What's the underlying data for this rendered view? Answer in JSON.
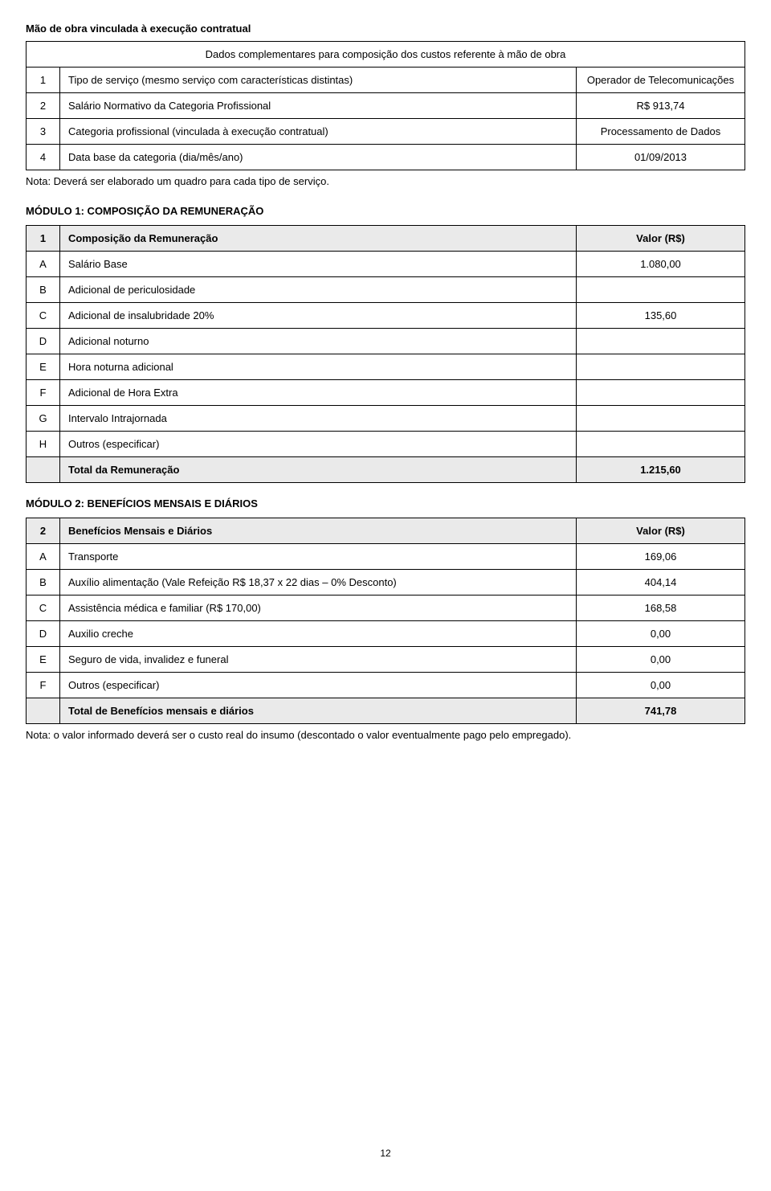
{
  "header": {
    "main_title": "Mão de obra vinculada à execução contratual",
    "sub_title": "Dados complementares para composição dos custos referente à mão de obra"
  },
  "dados": {
    "rows": [
      {
        "n": "1",
        "label": "Tipo de serviço (mesmo serviço com características distintas)",
        "value": "Operador de Telecomunicações"
      },
      {
        "n": "2",
        "label": "Salário Normativo da Categoria Profissional",
        "value": "R$ 913,74"
      },
      {
        "n": "3",
        "label": "Categoria profissional (vinculada à execução contratual)",
        "value": "Processamento de Dados"
      },
      {
        "n": "4",
        "label": "Data base da categoria (dia/mês/ano)",
        "value": "01/09/2013"
      }
    ],
    "note": "Nota: Deverá ser elaborado um quadro para cada tipo de serviço."
  },
  "modulo1": {
    "title": "MÓDULO 1: COMPOSIÇÃO DA REMUNERAÇÃO",
    "header_num": "1",
    "header_label": "Composição da Remuneração",
    "header_value": "Valor (R$)",
    "rows": [
      {
        "l": "A",
        "label": "Salário Base",
        "value": "1.080,00"
      },
      {
        "l": "B",
        "label": "Adicional de periculosidade",
        "value": ""
      },
      {
        "l": "C",
        "label": "Adicional de insalubridade  20%",
        "value": "135,60"
      },
      {
        "l": "D",
        "label": "Adicional noturno",
        "value": ""
      },
      {
        "l": "E",
        "label": "Hora noturna adicional",
        "value": ""
      },
      {
        "l": "F",
        "label": "Adicional de Hora Extra",
        "value": ""
      },
      {
        "l": "G",
        "label": "Intervalo Intrajornada",
        "value": ""
      },
      {
        "l": "H",
        "label": "Outros (especificar)",
        "value": ""
      }
    ],
    "total_label": "Total da Remuneração",
    "total_value": "1.215,60"
  },
  "modulo2": {
    "title": "MÓDULO 2: BENEFÍCIOS MENSAIS E DIÁRIOS",
    "header_num": "2",
    "header_label": "Benefícios Mensais e Diários",
    "header_value": "Valor (R$)",
    "rows": [
      {
        "l": "A",
        "label": "Transporte",
        "value": "169,06"
      },
      {
        "l": "B",
        "label": "Auxílio alimentação (Vale Refeição R$ 18,37 x 22 dias – 0% Desconto)",
        "value": "404,14"
      },
      {
        "l": "C",
        "label": "Assistência médica e familiar (R$ 170,00)",
        "value": "168,58"
      },
      {
        "l": "D",
        "label": "Auxilio creche",
        "value": "0,00"
      },
      {
        "l": "E",
        "label": "Seguro de vida, invalidez e funeral",
        "value": "0,00"
      },
      {
        "l": "F",
        "label": "Outros (especificar)",
        "value": "0,00"
      }
    ],
    "total_label": "Total de Benefícios mensais e diários",
    "total_value": "741,78",
    "note": "Nota: o valor informado deverá ser o custo real do insumo (descontado o valor eventualmente pago pelo empregado)."
  },
  "page_number": "12"
}
